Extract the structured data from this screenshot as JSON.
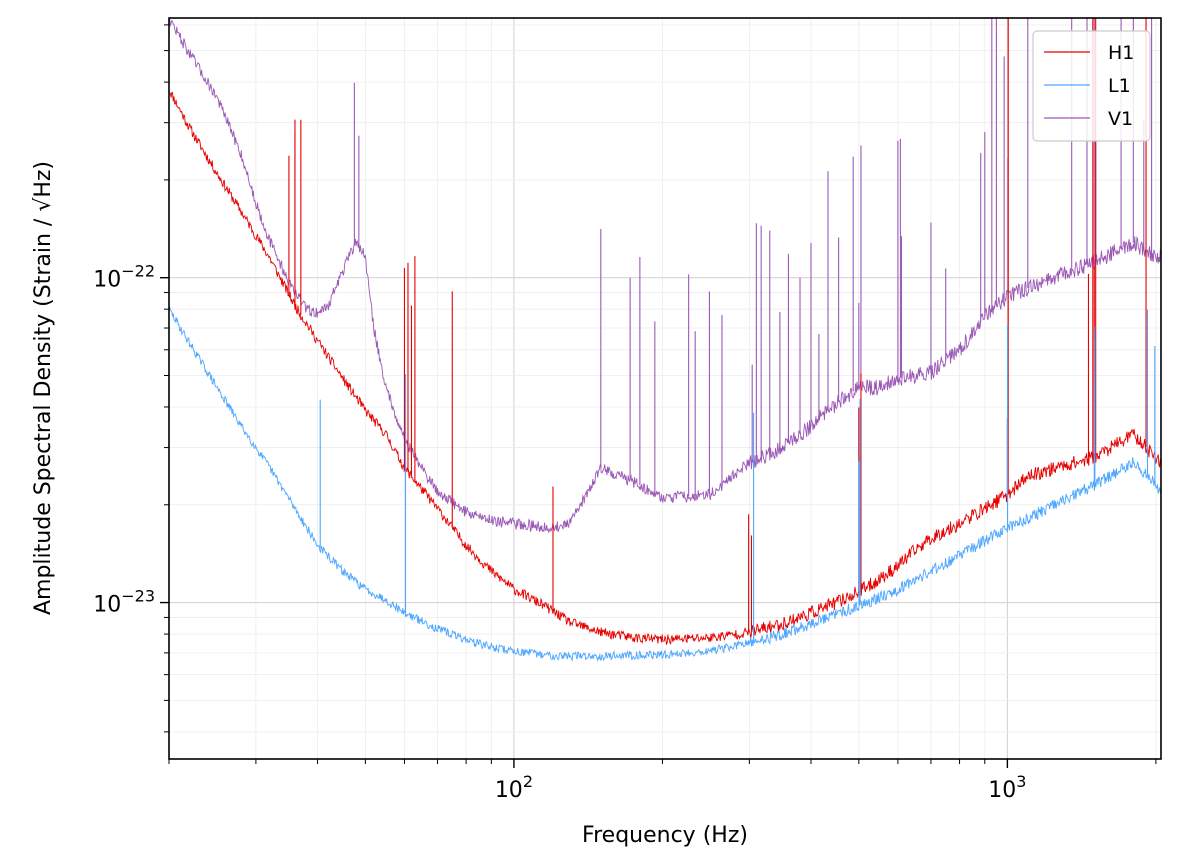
{
  "chart_data": {
    "type": "line",
    "xlabel": "Frequency (Hz)",
    "ylabel": "Amplitude Spectral Density (Strain / √Hz)",
    "x_scale": "log",
    "y_scale": "log",
    "xlim": [
      20,
      2048
    ],
    "ylim": [
      3.3e-24,
      6.3e-22
    ],
    "grid": true,
    "legend_position": "top-right",
    "x_ticks": [
      {
        "value": 100,
        "label": "10^2"
      },
      {
        "value": 1000,
        "label": "10^3"
      }
    ],
    "y_ticks": [
      {
        "value": 1e-23,
        "label": "10^-23"
      },
      {
        "value": 1e-22,
        "label": "10^-22"
      }
    ],
    "series": [
      {
        "name": "H1",
        "color": "#e60000",
        "x": [
          20,
          22,
          25,
          28,
          32,
          36,
          40,
          45,
          50,
          55,
          60,
          70,
          80,
          90,
          100,
          115,
          130,
          150,
          175,
          200,
          250,
          300,
          350,
          400,
          450,
          500,
          550,
          600,
          650,
          700,
          800,
          900,
          1000,
          1100,
          1250,
          1500,
          1800,
          2000,
          2048
        ],
        "values": [
          3.8e-22,
          2.9e-22,
          2.1e-22,
          1.6e-22,
          1.15e-22,
          8.2e-23,
          6.4e-23,
          4.9e-23,
          3.9e-23,
          3.3e-23,
          2.6e-23,
          1.95e-23,
          1.5e-23,
          1.25e-23,
          1.1e-23,
          9.8e-24,
          8.7e-24,
          8.1e-24,
          7.8e-24,
          7.7e-24,
          7.8e-24,
          8.1e-24,
          8.6e-24,
          9.3e-24,
          1e-23,
          1.08e-23,
          1.18e-23,
          1.3e-23,
          1.45e-23,
          1.58e-23,
          1.75e-23,
          1.95e-23,
          2.15e-23,
          2.45e-23,
          2.6e-23,
          2.8e-23,
          3.3e-23,
          2.8e-23,
          2.7e-23
        ]
      },
      {
        "name": "L1",
        "color": "#4da6ff",
        "x": [
          20,
          22,
          25,
          28,
          32,
          36,
          40,
          45,
          50,
          55,
          60,
          70,
          80,
          90,
          100,
          115,
          130,
          150,
          175,
          200,
          250,
          300,
          350,
          400,
          450,
          500,
          550,
          600,
          650,
          700,
          800,
          900,
          1000,
          1100,
          1250,
          1500,
          1800,
          2000,
          2048
        ],
        "values": [
          8e-23,
          6.3e-23,
          4.6e-23,
          3.5e-23,
          2.6e-23,
          1.95e-23,
          1.5e-23,
          1.25e-23,
          1.1e-23,
          1.02e-23,
          9.3e-24,
          8.3e-24,
          7.7e-24,
          7.3e-24,
          7.1e-24,
          6.9e-24,
          6.85e-24,
          6.85e-24,
          6.9e-24,
          6.9e-24,
          7.1e-24,
          7.5e-24,
          8e-24,
          8.6e-24,
          9.2e-24,
          9.8e-24,
          1.04e-23,
          1.1e-23,
          1.18e-23,
          1.25e-23,
          1.4e-23,
          1.55e-23,
          1.7e-23,
          1.82e-23,
          2e-23,
          2.3e-23,
          2.7e-23,
          2.3e-23,
          2.2e-23
        ]
      },
      {
        "name": "V1",
        "color": "#9b59b6",
        "x": [
          20,
          22,
          25,
          28,
          30,
          32,
          35,
          38,
          40,
          42,
          45,
          48,
          50,
          52,
          55,
          60,
          65,
          70,
          80,
          90,
          100,
          120,
          130,
          150,
          175,
          200,
          250,
          300,
          350,
          400,
          450,
          500,
          550,
          600,
          700,
          800,
          900,
          1000,
          1250,
          1500,
          1800,
          2000,
          2048
        ],
        "values": [
          6.3e-22,
          4.9e-22,
          3.6e-22,
          2.4e-22,
          1.7e-22,
          1.3e-22,
          9.7e-23,
          8e-23,
          7.8e-23,
          8.2e-23,
          1.05e-22,
          1.3e-22,
          1.15e-22,
          7e-23,
          4.6e-23,
          3.2e-23,
          2.6e-23,
          2.2e-23,
          1.9e-23,
          1.8e-23,
          1.75e-23,
          1.7e-23,
          1.75e-23,
          2.6e-23,
          2.35e-23,
          2.1e-23,
          2.15e-23,
          2.7e-23,
          3e-23,
          3.5e-23,
          4.1e-23,
          4.6e-23,
          4.6e-23,
          4.9e-23,
          5.1e-23,
          6e-23,
          7.6e-23,
          8.8e-23,
          1e-22,
          1.12e-22,
          1.28e-22,
          1.15e-22,
          1.15e-22
        ]
      }
    ],
    "spike_lines": [
      {
        "series": "V1",
        "freqs": [
          36,
          47.5,
          48.5,
          150,
          172,
          180,
          193,
          226,
          233,
          249,
          264,
          304,
          310,
          317,
          330,
          346,
          360,
          380,
          400,
          415,
          433,
          455,
          487,
          500,
          505,
          600,
          607,
          610,
          700,
          750,
          883,
          900,
          930,
          950,
          985,
          1003,
          1100,
          1350,
          1450,
          1500,
          1510,
          1700,
          1800,
          1890,
          1960
        ]
      },
      {
        "series": "H1",
        "freqs": [
          35,
          36,
          37,
          60,
          61,
          62,
          63,
          75,
          120,
          299,
          303,
          500,
          505,
          1000,
          1004,
          1460,
          1490,
          1500,
          1510,
          1910
        ]
      },
      {
        "series": "L1",
        "freqs": [
          40.5,
          60.3,
          306,
          500.2,
          503,
          1001,
          1500,
          1503,
          1503.5,
          1923,
          1990
        ]
      }
    ]
  }
}
